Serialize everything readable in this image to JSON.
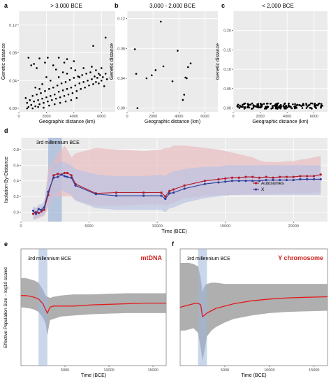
{
  "figure": {
    "panels": {
      "a": {
        "letter": "a",
        "title": "> 3,000 BCE"
      },
      "b": {
        "letter": "b",
        "title": "3,000 - 2,000 BCE"
      },
      "c": {
        "letter": "c",
        "title": "< 2,000 BCE"
      },
      "d": {
        "letter": "d"
      },
      "e": {
        "letter": "e"
      },
      "f": {
        "letter": "f"
      }
    },
    "shared_ylabel_ef": "Effective Population Size – log10 scaled"
  },
  "colors": {
    "autosomes": "#b2182b",
    "x": "#2c3e9c",
    "ribbon_red": "#e8b8bd",
    "ribbon_blue": "#b8c2e3",
    "ne_line": "#e31a1c",
    "ne_band": "#a6a6a6",
    "highlight": "#9fb5d9",
    "panel_bg": "#ebebeb",
    "grid": "#ffffff"
  },
  "chart_data": [
    {
      "type": "scatter",
      "panel": "a",
      "title": "> 3,000 BCE",
      "xlabel": "Geographic distance (km)",
      "ylabel": "Genetic distance",
      "xlim": [
        0,
        7000
      ],
      "ylim": [
        -0.005,
        0.14
      ],
      "xticks": [
        0,
        2000,
        4000,
        6000
      ],
      "yticks": [
        0.0,
        0.04,
        0.08,
        0.12
      ],
      "ytick_labels": [
        "0.00",
        "0.04",
        "0.08",
        "0.12"
      ],
      "points": [
        [
          6300,
          0.102
        ],
        [
          5400,
          0.09
        ],
        [
          700,
          0.073
        ],
        [
          1500,
          0.072
        ],
        [
          2100,
          0.073
        ],
        [
          2900,
          0.073
        ],
        [
          3500,
          0.071
        ],
        [
          900,
          0.062
        ],
        [
          1900,
          0.066
        ],
        [
          2500,
          0.062
        ],
        [
          3300,
          0.066
        ],
        [
          4000,
          0.068
        ],
        [
          1300,
          0.058
        ],
        [
          2700,
          0.056
        ],
        [
          3800,
          0.058
        ],
        [
          1100,
          0.064
        ],
        [
          500,
          0.015
        ],
        [
          600,
          0.008
        ],
        [
          700,
          0.002
        ],
        [
          800,
          0.012
        ],
        [
          900,
          0.005
        ],
        [
          1000,
          0.018
        ],
        [
          1100,
          0.01
        ],
        [
          1200,
          0.003
        ],
        [
          1300,
          0.02
        ],
        [
          1400,
          0.012
        ],
        [
          1500,
          0.006
        ],
        [
          1600,
          0.022
        ],
        [
          1700,
          0.014
        ],
        [
          1800,
          0.008
        ],
        [
          1900,
          0.025
        ],
        [
          2000,
          0.016
        ],
        [
          2100,
          0.01
        ],
        [
          2200,
          0.028
        ],
        [
          2300,
          0.018
        ],
        [
          2400,
          0.012
        ],
        [
          2500,
          0.03
        ],
        [
          2600,
          0.02
        ],
        [
          2700,
          0.014
        ],
        [
          2800,
          0.033
        ],
        [
          2900,
          0.024
        ],
        [
          3000,
          0.016
        ],
        [
          3100,
          0.036
        ],
        [
          3200,
          0.026
        ],
        [
          3300,
          0.018
        ],
        [
          3400,
          0.038
        ],
        [
          3500,
          0.028
        ],
        [
          3600,
          0.02
        ],
        [
          3700,
          0.041
        ],
        [
          3800,
          0.03
        ],
        [
          3900,
          0.022
        ],
        [
          4000,
          0.044
        ],
        [
          4100,
          0.033
        ],
        [
          4200,
          0.025
        ],
        [
          4300,
          0.046
        ],
        [
          4400,
          0.036
        ],
        [
          4500,
          0.028
        ],
        [
          4600,
          0.048
        ],
        [
          4700,
          0.038
        ],
        [
          4800,
          0.03
        ],
        [
          4900,
          0.05
        ],
        [
          5000,
          0.04
        ],
        [
          5100,
          0.033
        ],
        [
          5200,
          0.052
        ],
        [
          5300,
          0.042
        ],
        [
          5400,
          0.035
        ],
        [
          5500,
          0.046
        ],
        [
          5600,
          0.038
        ],
        [
          5700,
          0.044
        ],
        [
          5800,
          0.036
        ],
        [
          5900,
          0.048
        ],
        [
          6000,
          0.04
        ],
        [
          6100,
          0.045
        ],
        [
          6200,
          0.032
        ],
        [
          6300,
          0.05
        ],
        [
          6400,
          0.042
        ],
        [
          600,
          0.0
        ],
        [
          1000,
          0.0
        ],
        [
          1400,
          0.002
        ],
        [
          1800,
          0.001
        ],
        [
          2200,
          0.004
        ],
        [
          2600,
          0.006
        ],
        [
          3000,
          0.008
        ],
        [
          3400,
          0.01
        ],
        [
          3800,
          0.012
        ],
        [
          4200,
          0.015
        ],
        [
          1200,
          0.03
        ],
        [
          1700,
          0.035
        ],
        [
          2300,
          0.04
        ],
        [
          2900,
          0.045
        ],
        [
          3500,
          0.05
        ],
        [
          4100,
          0.055
        ],
        [
          4700,
          0.058
        ],
        [
          5300,
          0.06
        ],
        [
          5800,
          0.05
        ],
        [
          2000,
          0.045
        ],
        [
          1500,
          0.028
        ],
        [
          3200,
          0.052
        ],
        [
          4400,
          0.045
        ],
        [
          5600,
          0.055
        ],
        [
          6000,
          0.058
        ]
      ]
    },
    {
      "type": "scatter",
      "panel": "b",
      "title": "3,000 - 2,000 BCE",
      "xlabel": "Geographic distance (km)",
      "ylabel": "Genetic distance",
      "xlim": [
        0,
        7000
      ],
      "ylim": [
        -0.005,
        0.13
      ],
      "xticks": [
        0,
        2000,
        4000,
        6000
      ],
      "yticks": [
        0.0,
        0.04,
        0.08,
        0.12
      ],
      "ytick_labels": [
        "0.00",
        "0.04",
        "0.08",
        "0.12"
      ],
      "points": [
        [
          2600,
          0.116
        ],
        [
          600,
          0.079
        ],
        [
          3900,
          0.077
        ],
        [
          700,
          0.046
        ],
        [
          1500,
          0.04
        ],
        [
          2200,
          0.051
        ],
        [
          2800,
          0.056
        ],
        [
          3500,
          0.036
        ],
        [
          4700,
          0.055
        ],
        [
          4500,
          0.041
        ],
        [
          4600,
          0.04
        ],
        [
          4900,
          0.06
        ],
        [
          4300,
          0.011
        ],
        [
          1900,
          0.044
        ],
        [
          800,
          0.0
        ],
        [
          4400,
          0.018
        ]
      ]
    },
    {
      "type": "scatter",
      "panel": "c",
      "title": "< 2,000 BCE",
      "xlabel": "Geographic distance (km)",
      "ylabel": "Genetic distance",
      "xlim": [
        0,
        7000
      ],
      "ylim": [
        -0.01,
        0.25
      ],
      "xticks": [
        0,
        2000,
        4000,
        6000
      ],
      "yticks": [
        0.0,
        0.05,
        0.1,
        0.15,
        0.2
      ],
      "ytick_labels": [
        "0.00",
        "0.05",
        "0.10",
        "0.15",
        "0.20"
      ],
      "points_band": {
        "x_from": 300,
        "x_to": 6800,
        "y_min": -0.002,
        "y_max": 0.012,
        "count": 170
      }
    },
    {
      "type": "line",
      "panel": "d",
      "xlabel": "Time (BCE)",
      "ylabel": "Isolation-By-Distance",
      "annotation": "3rd millennium BCE",
      "xlim": [
        0,
        22500
      ],
      "ylim": [
        -0.12,
        0.95
      ],
      "xticks": [
        0,
        5000,
        10000,
        15000,
        20000
      ],
      "yticks": [
        0.0,
        0.2,
        0.4,
        0.6,
        0.8
      ],
      "ytick_labels": [
        "0.0",
        "0.2",
        "0.4",
        "0.6",
        "0.8"
      ],
      "highlight": [
        2000,
        3000
      ],
      "legend": {
        "position": "right",
        "items": [
          "Autosomes",
          "X"
        ]
      },
      "series": [
        {
          "name": "Autosomes",
          "x": [
            900,
            1100,
            1300,
            1500,
            1700,
            2000,
            2400,
            2700,
            3000,
            3200,
            3400,
            3700,
            4000,
            5500,
            7000,
            9000,
            10300,
            10600,
            10900,
            11200,
            12000,
            13500,
            14500,
            15000,
            15500,
            16000,
            16500,
            17000,
            17500,
            18000,
            18500,
            19000,
            19500,
            20000,
            20500,
            21000,
            21500,
            22000
          ],
          "y": [
            -0.02,
            0.0,
            -0.01,
            0.01,
            0.03,
            0.22,
            0.47,
            0.49,
            0.48,
            0.5,
            0.5,
            0.47,
            0.36,
            0.24,
            0.25,
            0.25,
            0.25,
            0.2,
            0.27,
            0.29,
            0.34,
            0.4,
            0.42,
            0.43,
            0.44,
            0.44,
            0.45,
            0.45,
            0.44,
            0.45,
            0.44,
            0.45,
            0.45,
            0.45,
            0.46,
            0.46,
            0.46,
            0.48
          ],
          "lower": [
            -0.1,
            -0.08,
            -0.08,
            -0.06,
            -0.05,
            0.05,
            0.2,
            0.2,
            0.2,
            0.2,
            0.2,
            0.2,
            0.15,
            0.08,
            0.08,
            0.1,
            0.1,
            0.08,
            0.1,
            0.12,
            0.18,
            0.2,
            0.22,
            0.22,
            0.22,
            0.22,
            0.23,
            0.23,
            0.23,
            0.23,
            0.23,
            0.24,
            0.24,
            0.24,
            0.24,
            0.24,
            0.25,
            0.25
          ],
          "upper": [
            0.05,
            0.06,
            0.06,
            0.07,
            0.09,
            0.55,
            0.65,
            0.75,
            0.8,
            0.85,
            0.8,
            0.7,
            0.75,
            0.82,
            0.8,
            0.78,
            0.8,
            0.82,
            0.82,
            0.85,
            0.85,
            0.82,
            0.8,
            0.78,
            0.76,
            0.74,
            0.72,
            0.7,
            0.66,
            0.64,
            0.64,
            0.64,
            0.65,
            0.65,
            0.67,
            0.68,
            0.7,
            0.72
          ]
        },
        {
          "name": "X",
          "x": [
            900,
            1100,
            1300,
            1500,
            1700,
            2000,
            2400,
            2700,
            3000,
            3200,
            3400,
            3700,
            4000,
            5500,
            7000,
            9000,
            10300,
            10600,
            10900,
            11200,
            12000,
            13500,
            14500,
            15000,
            15500,
            16000,
            16500,
            17000,
            17500,
            18000,
            18500,
            19000,
            19500,
            20000,
            20500,
            21000,
            21500,
            22000
          ],
          "y": [
            0.02,
            -0.02,
            0.04,
            0.03,
            0.06,
            0.26,
            0.44,
            0.45,
            0.48,
            0.46,
            0.45,
            0.44,
            0.34,
            0.23,
            0.21,
            0.21,
            0.21,
            0.17,
            0.24,
            0.25,
            0.3,
            0.36,
            0.38,
            0.39,
            0.4,
            0.4,
            0.4,
            0.4,
            0.4,
            0.41,
            0.41,
            0.41,
            0.41,
            0.41,
            0.42,
            0.42,
            0.42,
            0.42
          ],
          "lower": [
            -0.08,
            -0.1,
            -0.05,
            -0.05,
            -0.03,
            0.08,
            0.22,
            0.25,
            0.28,
            0.26,
            0.25,
            0.22,
            0.15,
            0.05,
            0.03,
            0.03,
            0.03,
            0.0,
            0.05,
            0.06,
            0.12,
            0.18,
            0.2,
            0.21,
            0.22,
            0.22,
            0.22,
            0.22,
            0.22,
            0.22,
            0.22,
            0.22,
            0.22,
            0.22,
            0.22,
            0.22,
            0.22,
            0.22
          ],
          "upper": [
            0.08,
            0.05,
            0.1,
            0.1,
            0.14,
            0.45,
            0.62,
            0.62,
            0.64,
            0.64,
            0.62,
            0.6,
            0.55,
            0.48,
            0.46,
            0.46,
            0.48,
            0.46,
            0.5,
            0.52,
            0.55,
            0.58,
            0.58,
            0.6,
            0.6,
            0.6,
            0.6,
            0.6,
            0.6,
            0.6,
            0.6,
            0.6,
            0.6,
            0.6,
            0.6,
            0.6,
            0.6,
            0.6
          ]
        }
      ]
    },
    {
      "type": "area",
      "panel": "e",
      "xlabel": "Time (BCE)",
      "ylabel": "Effective Population Size – log10 scaled",
      "annotation": "3rd millennium BCE",
      "label": "mtDNA",
      "xlim": [
        0,
        16500
      ],
      "ylim": [
        0,
        10
      ],
      "xticks": [
        5000,
        10000,
        15000
      ],
      "xtick_labels": [
        "5000",
        "10000",
        "15000"
      ],
      "highlight": [
        2000,
        3000
      ],
      "series": [
        {
          "name": "mtDNA",
          "x": [
            0,
            500,
            1000,
            1500,
            2000,
            2500,
            2800,
            3000,
            3300,
            3700,
            4500,
            6000,
            8000,
            10000,
            12000,
            14000,
            16500
          ],
          "y": [
            6.0,
            6.0,
            5.95,
            5.85,
            5.7,
            5.3,
            4.8,
            4.5,
            5.0,
            5.1,
            5.1,
            5.1,
            5.2,
            5.25,
            5.3,
            5.35,
            5.35
          ],
          "lower": [
            5.0,
            4.95,
            4.9,
            4.8,
            4.6,
            4.1,
            3.6,
            2.6,
            3.9,
            4.0,
            4.2,
            4.3,
            4.4,
            4.45,
            4.5,
            4.5,
            4.5
          ],
          "upper": [
            7.5,
            7.5,
            7.4,
            7.3,
            7.1,
            6.5,
            6.0,
            5.9,
            5.8,
            5.9,
            6.0,
            6.1,
            6.1,
            6.15,
            6.2,
            6.2,
            6.2
          ]
        }
      ]
    },
    {
      "type": "area",
      "panel": "f",
      "xlabel": "Time (BCE)",
      "annotation": "3rd millennium BCE",
      "label": "Y chromosome",
      "xlim": [
        0,
        16500
      ],
      "ylim": [
        0,
        10
      ],
      "xticks": [
        5000,
        10000,
        15000
      ],
      "xtick_labels": [
        "5000",
        "10000",
        "15000"
      ],
      "highlight": [
        2000,
        3000
      ],
      "series": [
        {
          "name": "Y chromosome",
          "x": [
            0,
            500,
            1000,
            1500,
            2000,
            2300,
            2500,
            2700,
            3000,
            3500,
            4000,
            5000,
            6000,
            8000,
            10000,
            12000,
            14000,
            16500
          ],
          "y": [
            5.0,
            5.1,
            5.2,
            5.3,
            5.35,
            5.2,
            4.2,
            4.3,
            4.5,
            4.7,
            4.9,
            5.1,
            5.3,
            5.55,
            5.7,
            5.8,
            5.85,
            5.9
          ],
          "lower": [
            3.0,
            3.0,
            3.1,
            3.2,
            2.8,
            1.5,
            0.4,
            1.2,
            2.5,
            3.0,
            3.3,
            3.7,
            4.0,
            4.3,
            4.5,
            4.6,
            4.65,
            4.7
          ],
          "upper": [
            8.8,
            8.8,
            8.8,
            8.7,
            8.5,
            7.5,
            6.3,
            6.8,
            7.0,
            7.1,
            7.1,
            7.0,
            7.0,
            7.0,
            7.0,
            7.0,
            7.0,
            7.0
          ]
        }
      ]
    }
  ]
}
